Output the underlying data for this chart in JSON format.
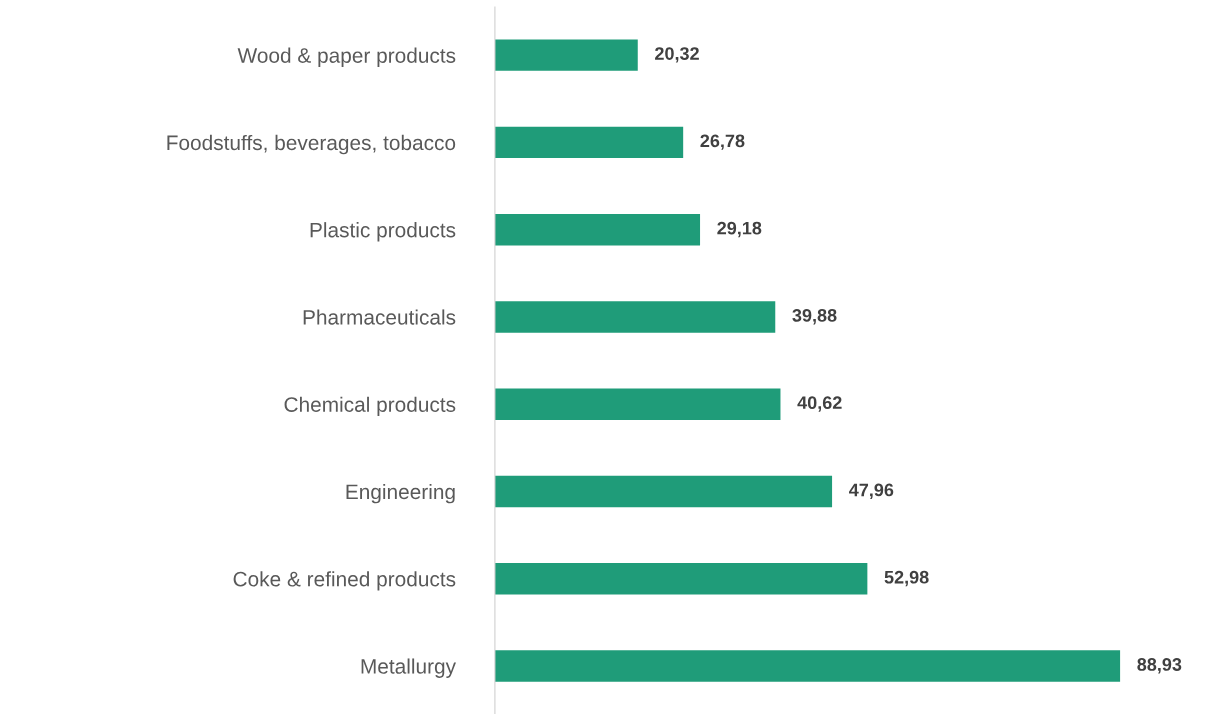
{
  "chart_data": {
    "type": "bar",
    "orientation": "horizontal",
    "categories": [
      "Wood & paper products",
      "Foodstuffs, beverages, tobacco",
      "Plastic products",
      "Pharmaceuticals",
      "Chemical products",
      "Engineering",
      "Coke & refined products",
      "Metallurgy"
    ],
    "values": [
      20.32,
      26.78,
      29.18,
      39.88,
      40.62,
      47.96,
      52.98,
      88.93
    ],
    "value_labels": [
      "20,32",
      "26,78",
      "29,18",
      "39,88",
      "40,62",
      "47,96",
      "52,98",
      "88,93"
    ],
    "color": "#1f9c79",
    "grid": false,
    "legend": false,
    "tick_labels": "y"
  }
}
